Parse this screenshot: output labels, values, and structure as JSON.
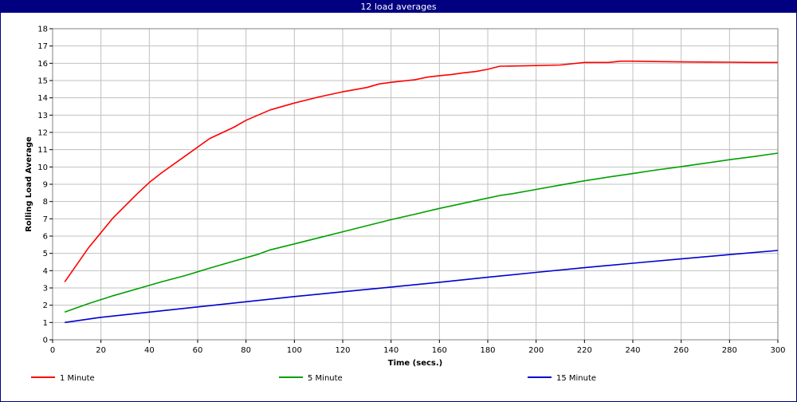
{
  "window": {
    "title": "12 load averages"
  },
  "chart_data": {
    "type": "line",
    "title": "12 load averages",
    "xlabel": "Time (secs.)",
    "ylabel": "Rolling Load Average",
    "xlim": [
      0,
      300
    ],
    "ylim": [
      0,
      18
    ],
    "xticks": [
      0,
      20,
      40,
      60,
      80,
      100,
      120,
      140,
      160,
      180,
      200,
      220,
      240,
      260,
      280,
      300
    ],
    "yticks": [
      0,
      1,
      2,
      3,
      4,
      5,
      6,
      7,
      8,
      9,
      10,
      11,
      12,
      13,
      14,
      15,
      16,
      17,
      18
    ],
    "grid": true,
    "legend_position": "bottom",
    "series": [
      {
        "name": "1 Minute",
        "color": "#ff0000",
        "x": [
          5,
          15,
          25,
          35,
          40,
          45,
          55,
          65,
          75,
          80,
          90,
          100,
          110,
          120,
          130,
          135,
          140,
          150,
          155,
          160,
          165,
          170,
          175,
          180,
          185,
          190,
          200,
          210,
          220,
          230,
          235,
          240,
          250,
          260,
          270,
          280,
          290,
          300
        ],
        "y": [
          3.35,
          5.35,
          7.05,
          8.45,
          9.1,
          9.65,
          10.65,
          11.65,
          12.3,
          12.7,
          13.3,
          13.7,
          14.05,
          14.35,
          14.6,
          14.8,
          14.9,
          15.05,
          15.2,
          15.28,
          15.35,
          15.45,
          15.52,
          15.65,
          15.83,
          15.84,
          15.87,
          15.9,
          16.05,
          16.05,
          16.12,
          16.12,
          16.1,
          16.08,
          16.07,
          16.06,
          16.05,
          16.05
        ]
      },
      {
        "name": "5 Minute",
        "color": "#00a000",
        "x": [
          5,
          15,
          25,
          35,
          45,
          55,
          65,
          75,
          85,
          90,
          100,
          110,
          120,
          130,
          140,
          150,
          160,
          170,
          180,
          185,
          190,
          200,
          210,
          220,
          230,
          240,
          250,
          260,
          270,
          280,
          290,
          300
        ],
        "y": [
          1.6,
          2.1,
          2.55,
          2.95,
          3.35,
          3.72,
          4.15,
          4.55,
          4.95,
          5.2,
          5.55,
          5.9,
          6.25,
          6.6,
          6.95,
          7.27,
          7.6,
          7.9,
          8.2,
          8.35,
          8.45,
          8.7,
          8.95,
          9.2,
          9.42,
          9.62,
          9.83,
          10.02,
          10.22,
          10.42,
          10.6,
          10.8
        ]
      },
      {
        "name": "15 Minute",
        "color": "#0000d0",
        "x": [
          5,
          20,
          40,
          60,
          80,
          100,
          120,
          140,
          160,
          180,
          200,
          220,
          240,
          260,
          280,
          300
        ],
        "y": [
          1.0,
          1.3,
          1.6,
          1.9,
          2.2,
          2.5,
          2.78,
          3.05,
          3.33,
          3.62,
          3.9,
          4.17,
          4.43,
          4.68,
          4.93,
          5.17
        ]
      }
    ]
  }
}
